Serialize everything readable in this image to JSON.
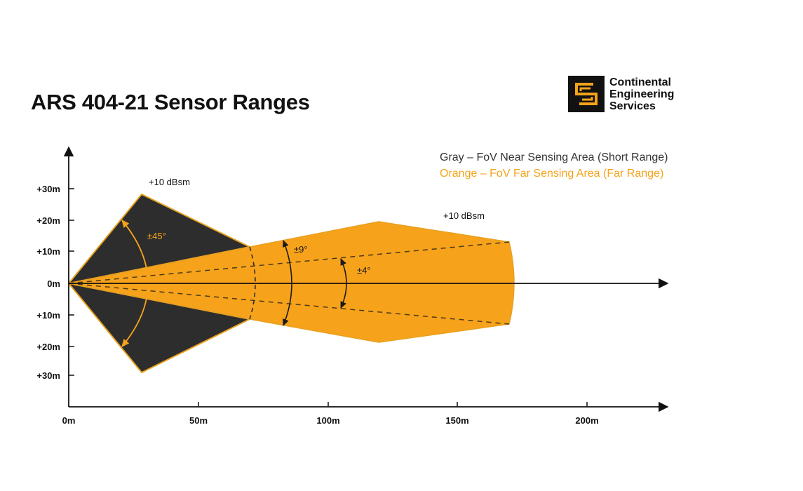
{
  "title": "ARS 404-21 Sensor Ranges",
  "logo": {
    "name": "logo-continental-engineering-services",
    "lines": [
      "Continental",
      "Engineering",
      "Services"
    ]
  },
  "legend": {
    "gray": "Gray – FoV Near Sensing Area (Short Range)",
    "orange": "Orange – FoV Far Sensing Area (Far Range)"
  },
  "colors": {
    "near": "#2d2d2d",
    "far": "#f7a21b",
    "outline": "#e8a020",
    "axis": "#111111",
    "dash": "#4a3a18"
  },
  "axes": {
    "x_ticks": [
      "0m",
      "50m",
      "100m",
      "150m",
      "200m"
    ],
    "y_ticks": [
      "+30m",
      "+20m",
      "+10m",
      "0m",
      "+10m",
      "+20m",
      "+30m"
    ]
  },
  "annotations": {
    "near_rcs": "+10 dBsm",
    "far_rcs": "+10 dBsm",
    "near_angle": "±45°",
    "far_angle_outer": "±9°",
    "far_angle_inner": "±4°"
  }
}
